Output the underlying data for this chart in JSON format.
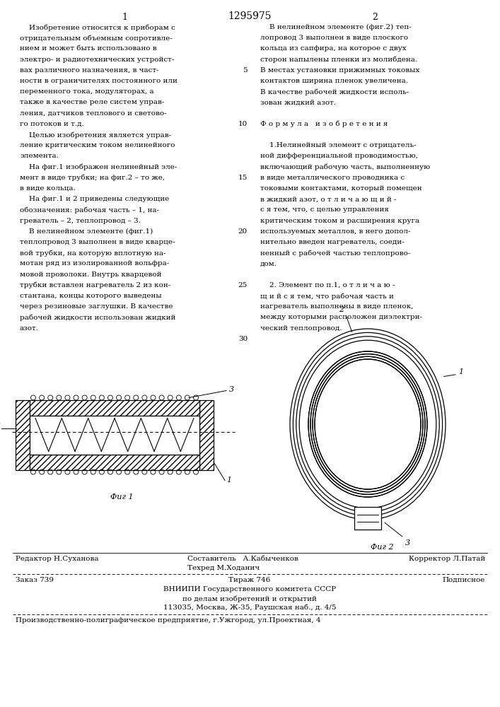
{
  "page_number_left": "1",
  "page_number_center": "1295975",
  "page_number_right": "2",
  "col1_lines": [
    "    Изобретение относится к приборам с",
    "отрицательным объемным сопротивле-",
    "нием и может быть использовано в",
    "электро- и радиотехнических устройст-",
    "вах различного назначения, в част-",
    "ности в ограничителях постоянного или",
    "переменного тока, модуляторах, а",
    "также в качестве реле систем управ-",
    "ления, датчиков теплового и светово-",
    "го потоков и т.д.",
    "    Целью изобретения является управ-",
    "ление критическим током нелинейного",
    "элемента.",
    "    На фиг.1 изображен нелинейный эле-",
    "мент в виде трубки; на фиг.2 – то же,",
    "в виде кольца.",
    "    На фиг.1 и 2 приведены следующие",
    "обозначения: рабочая часть – 1, на-",
    "греватель – 2, теплопровод – 3.",
    "    В нелинейном элементе (фиг.1)",
    "теплопровод 3 выполнен в виде кварце-",
    "вой трубки, на которую вплотную на-",
    "мотан ряд из изолированной вольфра-",
    "мовой проволоки. Внутрь кварцевой",
    "трубки вставлен нагреватель 2 из кон-",
    "стантана, концы которого выведены",
    "через резиновые заглушки. В качестве",
    "рабочей жидкости использован жидкий",
    "азот."
  ],
  "col2_lines": [
    "    В нелинейном элементе (фиг.2) теп-",
    "лопровод 3 выполнен в виде плоского",
    "кольца из сапфира, на которое с двух",
    "сторон напылены пленки из молибдена.",
    "В местах установки прижимных токовых",
    "контактов ширина пленок увеличена.",
    "В качестве рабочей жидкости исполь-",
    "зован жидкий азот.",
    "",
    "Ф о р м у л а   и з о б р е т е н и я",
    "",
    "    1.Нелинейный элемент с отрицатель-",
    "ной дифференциальной проводимостью,",
    "включающий рабочую часть, выполненную",
    "в виде металлического проводника с",
    "токовыми контактами, который помещен",
    "в жидкий азот, о т л и ч а ю щ и й -",
    "с я тем, что, с целью управления",
    "критическим током и расширения круга",
    "используемых металлов, в него допол-",
    "нительно введен нагреватель, соеди-",
    "ненный с рабочей частью теплопрово-",
    "дом.",
    "",
    "    2. Элемент по п.1, о т л и ч а ю -",
    "щ и й с я тем, что рабочая часть и",
    "нагреватель выполнены в виде пленок,",
    "между которыми расположен диэлектри-",
    "ческий теплопровод."
  ],
  "line_numbers": [
    5,
    10,
    15,
    20,
    25,
    30
  ],
  "fig1_label": "Фиг 1",
  "fig2_label": "Фиг 2",
  "footer_editor": "Редактор Н.Суханова",
  "footer_compiler1": "Составитель   А.Кабыченков",
  "footer_compiler2": "Техред М.Ходанич",
  "footer_corrector": "Корректор Л.Патай",
  "footer_order": "Заказ 739",
  "footer_tirazh": "Тираж 746",
  "footer_podpisnoe": "Подписное",
  "footer_org1": "ВНИИПИ Государственного комитета СССР",
  "footer_org2": "по делам изобретений и открытий",
  "footer_org3": "113035, Москва, Ж-35, Раушская наб., д. 4/5",
  "footer_printer": "Производственно-полиграфическое предприятие, г.Ужгород, ул.Проектная, 4",
  "bg_color": "#ffffff",
  "text_color": "#000000"
}
